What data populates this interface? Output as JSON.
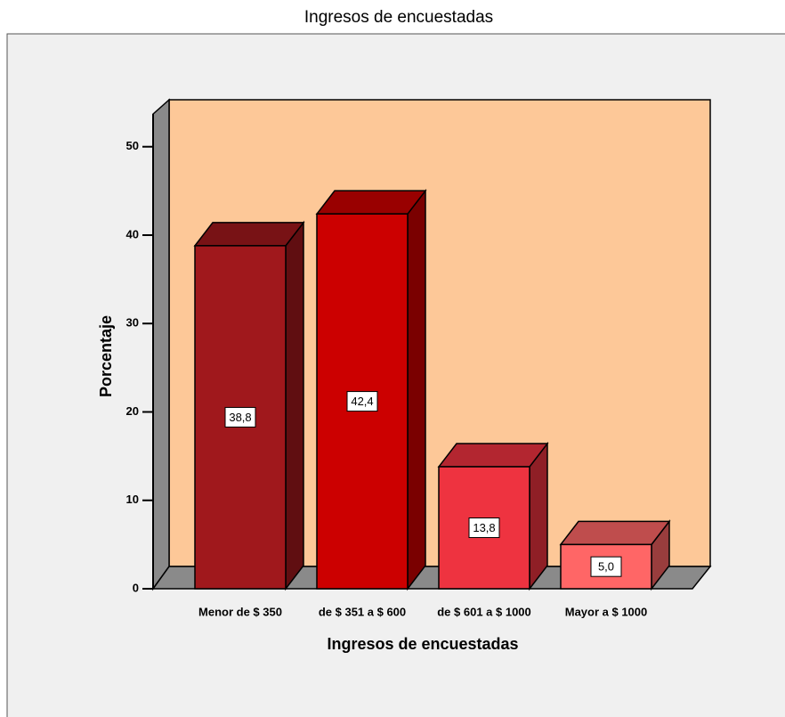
{
  "chart_data": {
    "type": "bar3d",
    "title": "Ingresos de encuestadas",
    "x_label": "Ingresos de encuestadas",
    "y_label": "Porcentaje",
    "categories": [
      "Menor de $ 350",
      "de $ 351 a $ 600",
      "de $ 601 a $ 1000",
      "Mayor a $ 1000"
    ],
    "values": [
      38.8,
      42.4,
      13.8,
      5.0
    ],
    "value_labels": [
      "38,8",
      "42,4",
      "13,8",
      "5,0"
    ],
    "colors": [
      "#a0181c",
      "#cc0000",
      "#ee3340",
      "#ff6666"
    ],
    "ylim": [
      0,
      53.7
    ],
    "yticks": [
      0,
      10,
      20,
      30,
      40,
      50
    ]
  }
}
